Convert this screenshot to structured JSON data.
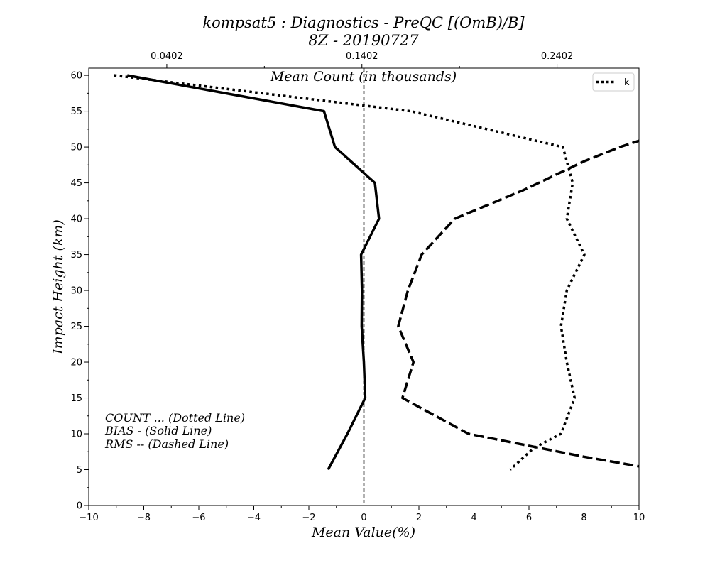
{
  "chart_data": {
    "type": "line",
    "title_line1": "kompsat5 : Diagnostics - PreQC [(OmB)/B]",
    "title_line2": "8Z - 20190727",
    "xlabel": "Mean Value(%)",
    "ylabel": "Impact Height (km)",
    "top_axis_label": "Mean Count (in thousands)",
    "xlim": [
      -10,
      10
    ],
    "ylim": [
      0,
      61
    ],
    "x_ticks": [
      -10,
      -8,
      -6,
      -4,
      -2,
      0,
      2,
      4,
      6,
      8,
      10
    ],
    "x_tick_labels": [
      "−10",
      "−8",
      "−6",
      "−4",
      "−2",
      "0",
      "2",
      "4",
      "6",
      "8",
      "10"
    ],
    "y_ticks": [
      0,
      5,
      10,
      15,
      20,
      25,
      30,
      35,
      40,
      45,
      50,
      55,
      60
    ],
    "y_tick_labels": [
      "0",
      "5",
      "10",
      "15",
      "20",
      "25",
      "30",
      "35",
      "40",
      "45",
      "50",
      "55",
      "60"
    ],
    "top_axis": {
      "xlim": [
        0.0002,
        0.2822
      ],
      "ticks": [
        0.0402,
        0.1402,
        0.2402
      ],
      "tick_labels": [
        "0.0402",
        "0.1402",
        "0.2402"
      ]
    },
    "grid": false,
    "legend": {
      "position": "top-right",
      "entries": [
        "k"
      ]
    },
    "annotations": [
      "COUNT ... (Dotted Line)",
      "BIAS - (Solid Line)",
      "RMS -- (Dashed Line)"
    ],
    "reference_line_x": 0,
    "series": [
      {
        "name": "COUNT",
        "style": "dotted",
        "axis": "top",
        "points": [
          [
            0.0132,
            60
          ],
          [
            0.1652,
            55
          ],
          [
            0.2432,
            50
          ],
          [
            0.2482,
            45
          ],
          [
            0.2452,
            40
          ],
          [
            0.2542,
            35
          ],
          [
            0.2452,
            30
          ],
          [
            0.2422,
            25
          ],
          [
            0.2452,
            20
          ],
          [
            0.2492,
            15
          ],
          [
            0.2422,
            10
          ],
          [
            0.2282,
            8
          ],
          [
            0.2162,
            5
          ]
        ]
      },
      {
        "name": "BIAS",
        "style": "solid",
        "axis": "bottom",
        "points": [
          [
            -8.6,
            60
          ],
          [
            -1.45,
            55
          ],
          [
            -1.05,
            50
          ],
          [
            0.4,
            45
          ],
          [
            0.55,
            40
          ],
          [
            -0.1,
            35
          ],
          [
            -0.07,
            30
          ],
          [
            -0.08,
            25
          ],
          [
            0.0,
            20
          ],
          [
            0.05,
            15
          ],
          [
            -0.6,
            10
          ],
          [
            -1.3,
            5
          ]
        ]
      },
      {
        "name": "RMS",
        "style": "dashed",
        "axis": "bottom",
        "points": [
          [
            10.1,
            51
          ],
          [
            9.3,
            50
          ],
          [
            8.0,
            48
          ],
          [
            5.8,
            44
          ],
          [
            3.3,
            40
          ],
          [
            2.1,
            35
          ],
          [
            1.6,
            30
          ],
          [
            1.25,
            25
          ],
          [
            1.8,
            20
          ],
          [
            1.4,
            15
          ],
          [
            3.8,
            10
          ],
          [
            8.0,
            6.8
          ],
          [
            10.1,
            5.4
          ]
        ]
      }
    ]
  }
}
